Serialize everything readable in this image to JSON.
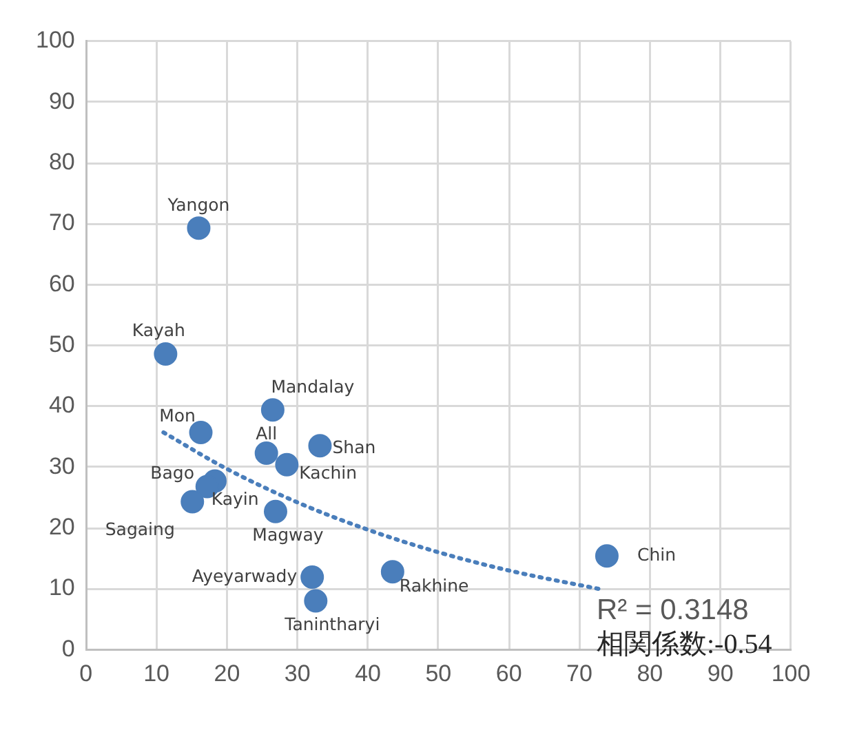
{
  "chart_data": {
    "type": "scatter",
    "xlim": [
      0,
      100
    ],
    "xticks": [
      0,
      10,
      20,
      30,
      40,
      50,
      60,
      70,
      80,
      90,
      100
    ],
    "ylim": [
      0,
      100
    ],
    "yticks": [
      0,
      10,
      20,
      30,
      40,
      50,
      60,
      70,
      80,
      90,
      100
    ],
    "grid": true,
    "legend": false,
    "series": [
      {
        "color": "#4a7ebb",
        "marker": "circle",
        "x": [
          16.0,
          11.3,
          26.5,
          16.3,
          25.6,
          33.2,
          28.5,
          18.3,
          17.2,
          15.1,
          26.9,
          32.1,
          32.6,
          43.5,
          73.9
        ],
        "values": [
          69.3,
          48.6,
          39.4,
          35.7,
          32.3,
          33.5,
          30.4,
          27.7,
          26.8,
          24.3,
          22.7,
          11.9,
          8.0,
          12.8,
          15.4
        ]
      },
      {
        "type": "line",
        "color": "#4a7ebb",
        "line_style": "dotted",
        "marker": "none",
        "x": [
          11,
          20,
          30,
          40,
          50,
          60,
          73.5
        ],
        "values": [
          35.7,
          29.7,
          24.2,
          19.7,
          16.0,
          13.0,
          9.8
        ]
      }
    ],
    "annotations": [
      {
        "text": "Yangon",
        "x": 16.0,
        "y": 69.3
      },
      {
        "text": "Kayah",
        "x": 11.3,
        "y": 48.6
      },
      {
        "text": "Mandalay",
        "x": 26.5,
        "y": 39.4
      },
      {
        "text": "Mon",
        "x": 16.3,
        "y": 35.7
      },
      {
        "text": "All",
        "x": 25.6,
        "y": 32.3
      },
      {
        "text": "Shan",
        "x": 33.2,
        "y": 33.5
      },
      {
        "text": "Kachin",
        "x": 28.5,
        "y": 30.4
      },
      {
        "text": "Bago",
        "x": 18.3,
        "y": 27.7
      },
      {
        "text": "Kayin",
        "x": 17.2,
        "y": 26.8
      },
      {
        "text": "Sagaing",
        "x": 15.1,
        "y": 24.3
      },
      {
        "text": "Magway",
        "x": 26.9,
        "y": 22.7
      },
      {
        "text": "Ayeyarwady",
        "x": 32.1,
        "y": 11.9
      },
      {
        "text": "Tanintharyi",
        "x": 32.6,
        "y": 8.0
      },
      {
        "text": "Rakhine",
        "x": 43.5,
        "y": 12.8
      },
      {
        "text": "Chin",
        "x": 73.9,
        "y": 15.4
      },
      "R² = 0.3148",
      "相関係数:-0.54"
    ]
  }
}
